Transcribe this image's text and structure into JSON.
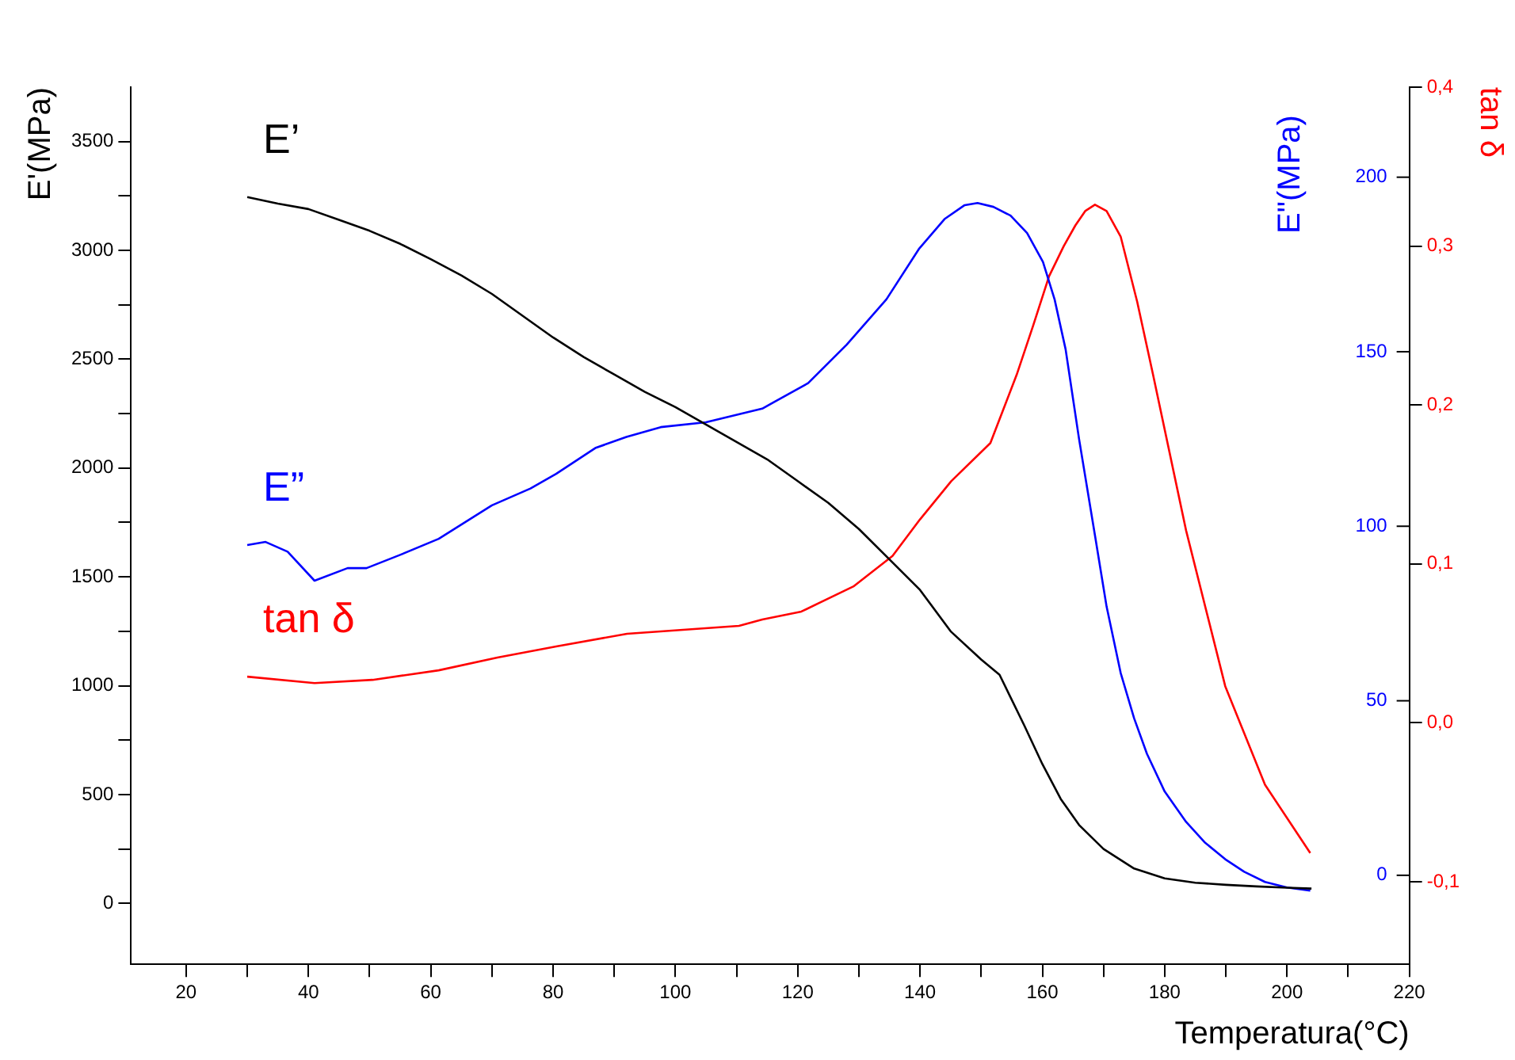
{
  "chart_data": {
    "type": "line",
    "xlabel": "Temperatura(°C)",
    "ylabel": "E'(MPa)",
    "y2label": "E\"(MPa)",
    "y3label": "tan δ",
    "marker": "none",
    "legend": false,
    "grid": false,
    "xlim": [
      11,
      220
    ],
    "xticks": [
      20,
      {
        "value": 30,
        "label": null
      },
      40,
      {
        "value": 50,
        "label": null
      },
      60,
      {
        "value": 70,
        "label": null
      },
      80,
      {
        "value": 90,
        "label": null
      },
      100,
      {
        "value": 110,
        "label": null
      },
      120,
      {
        "value": 130,
        "label": null
      },
      140,
      {
        "value": 150,
        "label": null
      },
      160,
      {
        "value": 170,
        "label": null
      },
      180,
      {
        "value": 190,
        "label": null
      },
      200,
      {
        "value": 210,
        "label": null
      },
      220
    ],
    "ylim": [
      -280,
      3750
    ],
    "yticks": [
      0,
      {
        "value": 250,
        "label": null
      },
      500,
      {
        "value": 750,
        "label": null
      },
      1000,
      {
        "value": 1250,
        "label": null
      },
      1500,
      {
        "value": 1750,
        "label": null
      },
      2000,
      {
        "value": 2250,
        "label": null
      },
      2500,
      {
        "value": 2750,
        "label": null
      },
      3000,
      {
        "value": 3250,
        "label": null
      },
      3500
    ],
    "y2lim": [
      -25.5,
      225.8
    ],
    "y2ticks": [
      0,
      50,
      100,
      150,
      200
    ],
    "y3lim": [
      -0.152,
      0.4
    ],
    "y3ticks": [
      {
        "value": -0.1,
        "label": "-0,1"
      },
      {
        "value": 0,
        "label": "0,0"
      },
      {
        "value": 0.1,
        "label": "0,1"
      },
      {
        "value": 0.2,
        "label": "0,2"
      },
      {
        "value": 0.3,
        "label": "0,3"
      },
      {
        "value": 0.4,
        "label": "0,4"
      }
    ],
    "series": [
      {
        "name": "E’",
        "color": "#000000",
        "x": [
          30,
          35,
          40,
          45,
          50,
          55,
          60,
          65,
          70,
          75,
          80,
          85,
          90,
          95,
          100,
          105,
          110,
          115,
          120,
          125,
          130,
          135,
          140,
          145,
          150,
          153,
          157,
          160,
          163,
          166,
          170,
          175,
          180,
          185,
          190,
          195,
          200,
          204
        ],
        "values": [
          3245,
          3215,
          3190,
          3140,
          3090,
          3030,
          2960,
          2885,
          2800,
          2700,
          2600,
          2510,
          2430,
          2350,
          2280,
          2200,
          2120,
          2040,
          1940,
          1840,
          1720,
          1580,
          1440,
          1250,
          1120,
          1050,
          820,
          640,
          480,
          360,
          250,
          160,
          115,
          95,
          85,
          78,
          72,
          68
        ]
      },
      {
        "name": "E”",
        "color": "#0000ff",
        "axis": "y2",
        "x": [
          30,
          33,
          36.6,
          41,
          46.4,
          49.5,
          55,
          61.3,
          70,
          76.3,
          80.5,
          86.9,
          92,
          97.6,
          105,
          114.2,
          121.7,
          128,
          134.5,
          139.8,
          144,
          147.3,
          149.4,
          152,
          154.8,
          157.5,
          160.1,
          162,
          163.8,
          166,
          168.6,
          170.5,
          172.8,
          175,
          177.1,
          180,
          183.5,
          186.5,
          189.9,
          193,
          196.4,
          200,
          203.8
        ],
        "values": [
          94.6,
          95.5,
          92.7,
          84.4,
          88,
          88,
          91.8,
          96.4,
          106,
          110.8,
          115,
          122.4,
          125.6,
          128.4,
          129.8,
          133.7,
          141,
          152,
          165,
          179.4,
          188,
          192,
          192.6,
          191.5,
          189,
          184,
          175.7,
          165,
          150.7,
          125,
          97.4,
          77,
          58,
          45,
          34.8,
          24,
          15.3,
          9.5,
          4.6,
          1,
          -1.9,
          -3.5,
          -4.4
        ]
      },
      {
        "name": "tan δ",
        "color": "#ff0000",
        "axis": "y3",
        "x": [
          30,
          41,
          50.5,
          61.3,
          70.9,
          80.5,
          92.1,
          110.4,
          114.2,
          120.6,
          129.2,
          135.5,
          140,
          145.1,
          151.5,
          155.8,
          158.5,
          161.1,
          163.5,
          165.4,
          167,
          168.6,
          170.5,
          172.8,
          175.5,
          178.1,
          183.5,
          189.9,
          196.4,
          203.8
        ],
        "values": [
          0.029,
          0.025,
          0.027,
          0.033,
          0.041,
          0.048,
          0.056,
          0.061,
          0.065,
          0.07,
          0.086,
          0.105,
          0.128,
          0.152,
          0.176,
          0.219,
          0.25,
          0.281,
          0.3,
          0.313,
          0.322,
          0.326,
          0.322,
          0.306,
          0.265,
          0.219,
          0.121,
          0.023,
          -0.039,
          -0.082
        ]
      }
    ]
  }
}
